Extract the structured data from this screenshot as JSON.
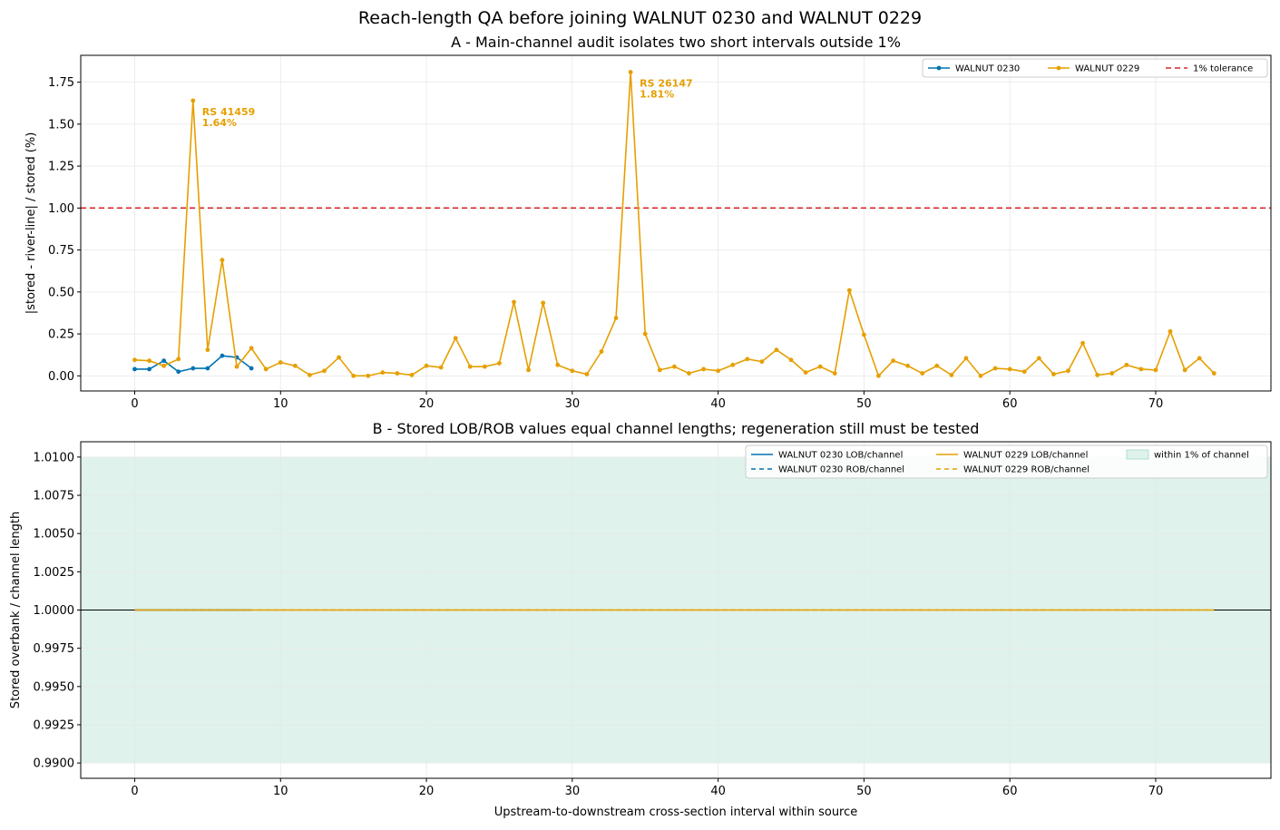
{
  "figure": {
    "suptitle": "Reach-length QA before joining WALNUT 0230 and WALNUT 0229"
  },
  "colors": {
    "walnut_0230": "#0072b2",
    "walnut_0229": "#e69f00",
    "tolerance": "#d62728",
    "band_fill": "#dff2ec",
    "band_edge": "#9fd8c4",
    "grid": "#e8e8e8",
    "axis": "#000000"
  },
  "chart_data": [
    {
      "type": "line",
      "title": "A - Main-channel audit isolates two short intervals outside 1%",
      "xlabel": "",
      "ylabel": "|stored - river-line| / stored (%)",
      "xlim": [
        -3.7,
        77.9
      ],
      "ylim": [
        -0.09,
        1.91
      ],
      "xticks": [
        0,
        10,
        20,
        30,
        40,
        50,
        60,
        70
      ],
      "yticks": [
        0.0,
        0.25,
        0.5,
        0.75,
        1.0,
        1.25,
        1.5,
        1.75
      ],
      "ytick_labels": [
        "0.00",
        "0.25",
        "0.50",
        "0.75",
        "1.00",
        "1.25",
        "1.50",
        "1.75"
      ],
      "grid": true,
      "legend_position": "top-right",
      "series": [
        {
          "name": "WALNUT 0230",
          "color_key": "walnut_0230",
          "x": [
            0,
            1,
            2,
            3,
            4,
            5,
            6,
            7,
            8
          ],
          "values": [
            0.04,
            0.04,
            0.09,
            0.025,
            0.045,
            0.045,
            0.12,
            0.11,
            0.045
          ]
        },
        {
          "name": "WALNUT 0229",
          "color_key": "walnut_0229",
          "x": [
            0,
            1,
            2,
            3,
            4,
            5,
            6,
            7,
            8,
            9,
            10,
            11,
            12,
            13,
            14,
            15,
            16,
            17,
            18,
            19,
            20,
            21,
            22,
            23,
            24,
            25,
            26,
            27,
            28,
            29,
            30,
            31,
            32,
            33,
            34,
            35,
            36,
            37,
            38,
            39,
            40,
            41,
            42,
            43,
            44,
            45,
            46,
            47,
            48,
            49,
            50,
            51,
            52,
            53,
            54,
            55,
            56,
            57,
            58,
            59,
            60,
            61,
            62,
            63,
            64,
            65,
            66,
            67,
            68,
            69,
            70,
            71,
            72,
            73,
            74
          ],
          "values": [
            0.095,
            0.09,
            0.06,
            0.1,
            1.64,
            0.155,
            0.69,
            0.055,
            0.165,
            0.04,
            0.08,
            0.06,
            0.005,
            0.03,
            0.11,
            0.0,
            0.0,
            0.02,
            0.015,
            0.005,
            0.06,
            0.05,
            0.225,
            0.055,
            0.055,
            0.075,
            0.44,
            0.035,
            0.435,
            0.065,
            0.03,
            0.01,
            0.145,
            0.345,
            1.81,
            0.25,
            0.035,
            0.055,
            0.015,
            0.04,
            0.03,
            0.065,
            0.1,
            0.085,
            0.155,
            0.095,
            0.02,
            0.055,
            0.015,
            0.51,
            0.245,
            0.0,
            0.09,
            0.06,
            0.015,
            0.06,
            0.005,
            0.105,
            0.0,
            0.045,
            0.04,
            0.025,
            0.105,
            0.01,
            0.03,
            0.195,
            0.005,
            0.015,
            0.065,
            0.04,
            0.035,
            0.265,
            0.035,
            0.105,
            0.015
          ]
        },
        {
          "name": "1% tolerance",
          "color_key": "tolerance",
          "style": "dashed",
          "hline": 1.0
        }
      ],
      "annotations": [
        {
          "x": 4,
          "y": 1.64,
          "line1": "RS 41459",
          "line2": "1.64%"
        },
        {
          "x": 34,
          "y": 1.81,
          "line1": "RS 26147",
          "line2": "1.81%"
        }
      ]
    },
    {
      "type": "line",
      "title": "B - Stored LOB/ROB values equal channel lengths; regeneration still must be tested",
      "xlabel": "Upstream-to-downstream cross-section interval within source",
      "ylabel": "Stored overbank / channel length",
      "xlim": [
        -3.7,
        77.9
      ],
      "ylim": [
        0.989,
        1.011
      ],
      "xticks": [
        0,
        10,
        20,
        30,
        40,
        50,
        60,
        70
      ],
      "yticks": [
        0.99,
        0.9925,
        0.995,
        0.9975,
        1.0,
        1.0025,
        1.005,
        1.0075,
        1.01
      ],
      "ytick_labels": [
        "0.9900",
        "0.9925",
        "0.9950",
        "0.9975",
        "1.0000",
        "1.0025",
        "1.0050",
        "1.0075",
        "1.0100"
      ],
      "grid": true,
      "legend_position": "top-right",
      "band": {
        "name": "within 1% of channel",
        "lo": 0.99,
        "hi": 1.01
      },
      "reference_line": 1.0,
      "series": [
        {
          "name": "WALNUT 0230 LOB/channel",
          "color_key": "walnut_0230",
          "style": "solid",
          "x_start": 0,
          "x_end": 8,
          "value": 1.0
        },
        {
          "name": "WALNUT 0230 ROB/channel",
          "color_key": "walnut_0230",
          "style": "dashed",
          "x_start": 0,
          "x_end": 8,
          "value": 1.0
        },
        {
          "name": "WALNUT 0229 LOB/channel",
          "color_key": "walnut_0229",
          "style": "solid",
          "x_start": 0,
          "x_end": 74,
          "value": 1.0
        },
        {
          "name": "WALNUT 0229 ROB/channel",
          "color_key": "walnut_0229",
          "style": "dashed",
          "x_start": 0,
          "x_end": 74,
          "value": 1.0
        }
      ]
    }
  ]
}
